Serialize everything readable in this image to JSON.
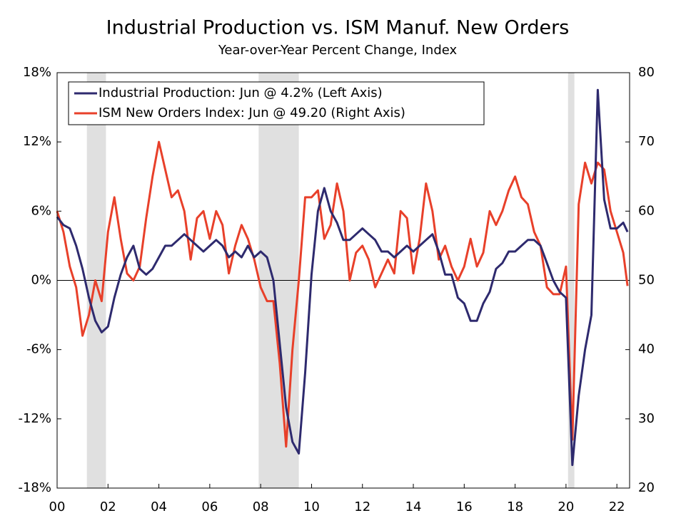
{
  "chart_data": {
    "type": "line",
    "title": "Industrial Production vs. ISM Manuf. New Orders",
    "subtitle": "Year-over-Year Percent Change, Index",
    "x": [
      2000,
      2000.25,
      2000.5,
      2000.75,
      2001,
      2001.25,
      2001.5,
      2001.75,
      2002,
      2002.25,
      2002.5,
      2002.75,
      2003,
      2003.25,
      2003.5,
      2003.75,
      2004,
      2004.25,
      2004.5,
      2004.75,
      2005,
      2005.25,
      2005.5,
      2005.75,
      2006,
      2006.25,
      2006.5,
      2006.75,
      2007,
      2007.25,
      2007.5,
      2007.75,
      2008,
      2008.25,
      2008.5,
      2008.75,
      2009,
      2009.25,
      2009.5,
      2009.75,
      2010,
      2010.25,
      2010.5,
      2010.75,
      2011,
      2011.25,
      2011.5,
      2011.75,
      2012,
      2012.25,
      2012.5,
      2012.75,
      2013,
      2013.25,
      2013.5,
      2013.75,
      2014,
      2014.25,
      2014.5,
      2014.75,
      2015,
      2015.25,
      2015.5,
      2015.75,
      2016,
      2016.25,
      2016.5,
      2016.75,
      2017,
      2017.25,
      2017.5,
      2017.75,
      2018,
      2018.25,
      2018.5,
      2018.75,
      2019,
      2019.25,
      2019.5,
      2019.75,
      2020,
      2020.25,
      2020.5,
      2020.75,
      2021,
      2021.25,
      2021.5,
      2021.75,
      2022,
      2022.25,
      2022.42
    ],
    "series": [
      {
        "name": "Industrial Production: Jun @ 4.2% (Left Axis)",
        "color": "#2e2a6e",
        "axis": "y",
        "values": [
          5.5,
          4.8,
          4.5,
          3.0,
          1.0,
          -1.5,
          -3.5,
          -4.5,
          -4.0,
          -1.5,
          0.5,
          2.0,
          3.0,
          1.0,
          0.5,
          1.0,
          2.0,
          3.0,
          3.0,
          3.5,
          4.0,
          3.5,
          3.0,
          2.5,
          3.0,
          3.5,
          3.0,
          2.0,
          2.5,
          2.0,
          3.0,
          2.0,
          2.5,
          2.0,
          0.0,
          -5.5,
          -11.0,
          -14.0,
          -15.0,
          -8.0,
          0.5,
          6.0,
          8.0,
          6.0,
          5.0,
          3.5,
          3.5,
          4.0,
          4.5,
          4.0,
          3.5,
          2.5,
          2.5,
          2.0,
          2.5,
          3.0,
          2.5,
          3.0,
          3.5,
          4.0,
          2.5,
          0.5,
          0.5,
          -1.5,
          -2.0,
          -3.5,
          -3.5,
          -2.0,
          -1.0,
          1.0,
          1.5,
          2.5,
          2.5,
          3.0,
          3.5,
          3.5,
          3.0,
          1.5,
          0.0,
          -1.0,
          -1.5,
          -16.0,
          -10.0,
          -6.0,
          -3.0,
          16.5,
          7.0,
          4.5,
          4.5,
          5.0,
          4.2
        ]
      },
      {
        "name": "ISM New Orders Index: Jun @ 49.20 (Right Axis)",
        "color": "#e8402a",
        "axis": "y2",
        "values": [
          60,
          57,
          52,
          49,
          42,
          45,
          50,
          47,
          57,
          62,
          56,
          51,
          50,
          52,
          59,
          65,
          70,
          66,
          62,
          63,
          60,
          53,
          59,
          60,
          56,
          60,
          58,
          51,
          55,
          58,
          56,
          53,
          49,
          47,
          47,
          38,
          26,
          40,
          50,
          62,
          62,
          63,
          56,
          58,
          64,
          60,
          50,
          54,
          55,
          53,
          49,
          51,
          53,
          51,
          60,
          59,
          51,
          56,
          64,
          60,
          53,
          55,
          52,
          50,
          52,
          56,
          52,
          54,
          60,
          58,
          60,
          63,
          65,
          62,
          61,
          57,
          55,
          49,
          48,
          48,
          52,
          27,
          61,
          67,
          64,
          67,
          66,
          60,
          57,
          54,
          49.2
        ]
      }
    ],
    "recessions": [
      [
        2001.17,
        2001.92
      ],
      [
        2007.92,
        2009.5
      ],
      [
        2020.08,
        2020.33
      ]
    ],
    "xlim": [
      2000,
      2022.5
    ],
    "xticks": [
      {
        "value": 2000,
        "label": "00"
      },
      {
        "value": 2002,
        "label": "02"
      },
      {
        "value": 2004,
        "label": "04"
      },
      {
        "value": 2006,
        "label": "06"
      },
      {
        "value": 2008,
        "label": "08"
      },
      {
        "value": 2010,
        "label": "10"
      },
      {
        "value": 2012,
        "label": "12"
      },
      {
        "value": 2014,
        "label": "14"
      },
      {
        "value": 2016,
        "label": "16"
      },
      {
        "value": 2018,
        "label": "18"
      },
      {
        "value": 2020,
        "label": "20"
      },
      {
        "value": 2022,
        "label": "22"
      }
    ],
    "ylim": [
      -18,
      18
    ],
    "yticks": [
      {
        "value": -18,
        "label": "-18%"
      },
      {
        "value": -12,
        "label": "-12%"
      },
      {
        "value": -6,
        "label": "-6%"
      },
      {
        "value": 0,
        "label": "0%"
      },
      {
        "value": 6,
        "label": "6%"
      },
      {
        "value": 12,
        "label": "12%"
      },
      {
        "value": 18,
        "label": "18%"
      }
    ],
    "y2lim": [
      20,
      80
    ],
    "y2ticks": [
      20,
      30,
      40,
      50,
      60,
      70,
      80
    ],
    "legend": "top-left"
  }
}
